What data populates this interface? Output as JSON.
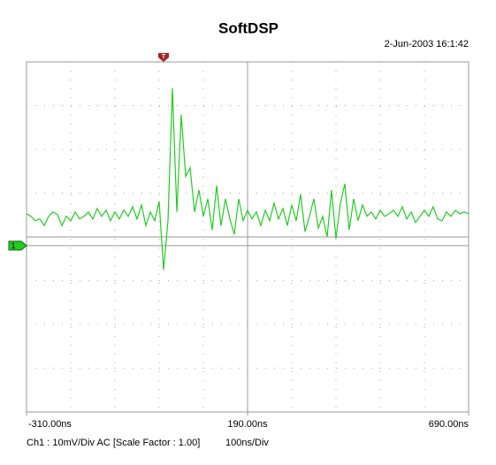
{
  "chart_data": {
    "type": "line",
    "title": "SoftDSP",
    "timestamp": "2-Jun-2003 16:1:42",
    "channel_info": "Ch1 : 10mV/Div  AC  [Scale Factor : 1.00]",
    "timebase": "100ns/Div",
    "xlim": [
      -310,
      690
    ],
    "xticks": [
      {
        "value": -310,
        "label": "-310.00ns"
      },
      {
        "value": 190,
        "label": "190.00ns"
      },
      {
        "value": 690,
        "label": "690.00ns"
      }
    ],
    "ylim": [
      -38,
      42
    ],
    "yticks": [
      {
        "value": 0,
        "label": "1"
      }
    ],
    "trigger": {
      "value": 0,
      "label": "T"
    },
    "x": [
      -310,
      -300,
      -290,
      -280,
      -270,
      -260,
      -250,
      -240,
      -230,
      -220,
      -210,
      -200,
      -190,
      -180,
      -170,
      -160,
      -150,
      -140,
      -130,
      -120,
      -110,
      -100,
      -90,
      -80,
      -70,
      -60,
      -50,
      -40,
      -30,
      -20,
      -10,
      0,
      10,
      20,
      30,
      40,
      50,
      60,
      70,
      80,
      90,
      100,
      110,
      120,
      130,
      140,
      150,
      160,
      170,
      180,
      190,
      200,
      210,
      220,
      230,
      240,
      250,
      260,
      270,
      280,
      290,
      300,
      310,
      320,
      330,
      340,
      350,
      360,
      370,
      380,
      390,
      400,
      410,
      420,
      430,
      440,
      450,
      460,
      470,
      480,
      490,
      500,
      510,
      520,
      530,
      540,
      550,
      560,
      570,
      580,
      590,
      600,
      610,
      620,
      630,
      640,
      650,
      660,
      670,
      680,
      690
    ],
    "series": [
      {
        "name": "Ch1",
        "color": "#22cc22",
        "values": [
          7.3,
          6.7,
          5.7,
          6.1,
          4.6,
          6.7,
          7.7,
          7.1,
          4.6,
          6.7,
          5.7,
          7.7,
          6.1,
          6.7,
          7.7,
          6.1,
          8.5,
          6.7,
          8.1,
          5.7,
          7.7,
          6.1,
          8.1,
          6.7,
          8.9,
          6.1,
          9.3,
          4.6,
          7.7,
          5.7,
          10.1,
          -5.5,
          5.7,
          36.0,
          7.7,
          29.9,
          15.8,
          17.8,
          7.7,
          12.7,
          6.7,
          10.7,
          3.6,
          13.7,
          4.6,
          10.7,
          6.1,
          2.6,
          10.7,
          5.7,
          8.1,
          6.1,
          7.7,
          4.6,
          8.1,
          5.7,
          9.7,
          6.1,
          8.5,
          4.6,
          9.3,
          5.7,
          11.7,
          3.2,
          6.7,
          10.7,
          4.0,
          6.7,
          2.0,
          12.7,
          1.6,
          9.7,
          14.1,
          3.6,
          10.7,
          5.7,
          9.3,
          6.7,
          7.7,
          6.1,
          8.1,
          6.7,
          7.3,
          8.1,
          6.7,
          8.9,
          6.1,
          7.7,
          5.3,
          6.7,
          8.1,
          6.7,
          8.9,
          6.1,
          5.7,
          7.7,
          6.7,
          8.1,
          7.3,
          7.7,
          7.3
        ]
      }
    ]
  }
}
